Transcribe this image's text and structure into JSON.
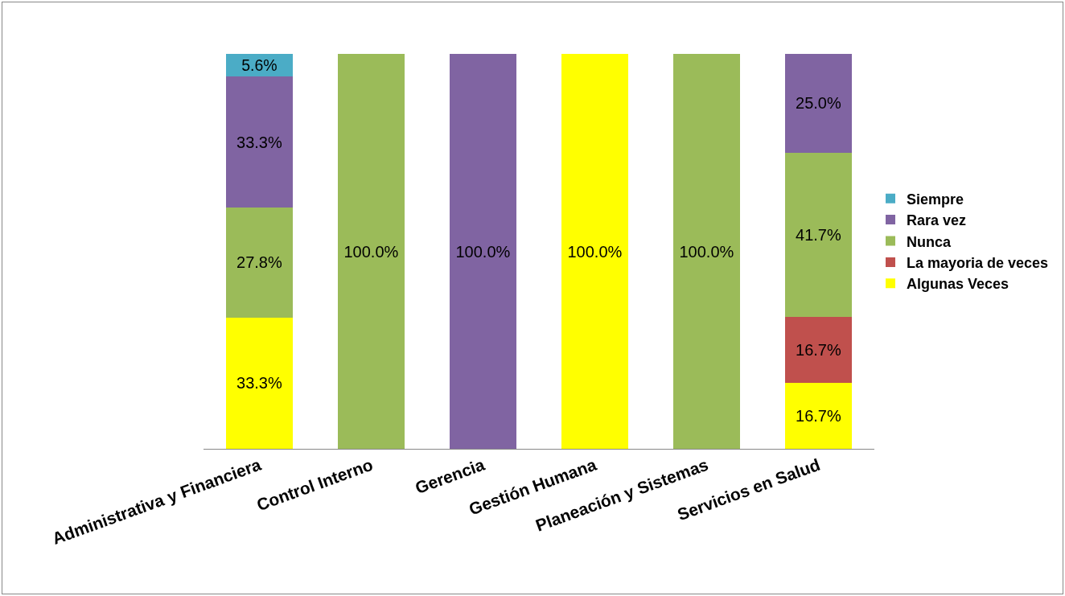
{
  "chart_data": {
    "type": "bar",
    "stacked": true,
    "legend": "right",
    "categories": [
      "Administrativa y Financiera",
      "Control Interno",
      "Gerencia",
      "Gestión Humana",
      "Planeación y Sistemas",
      "Servicios en Salud"
    ],
    "series": [
      {
        "name": "Algunas Veces",
        "color": "#ffff00",
        "values": [
          33.3,
          null,
          null,
          100.0,
          null,
          16.7
        ],
        "value_labels": [
          "33.3%",
          null,
          null,
          "100.0%",
          null,
          "16.7%"
        ]
      },
      {
        "name": "La mayoria de veces",
        "color": "#c0504d",
        "values": [
          null,
          null,
          null,
          null,
          null,
          16.7
        ],
        "value_labels": [
          null,
          null,
          null,
          null,
          null,
          "16.7%"
        ]
      },
      {
        "name": "Nunca",
        "color": "#9bbb59",
        "values": [
          27.8,
          100.0,
          null,
          null,
          100.0,
          41.7
        ],
        "value_labels": [
          "27.8%",
          "100.0%",
          null,
          null,
          "100.0%",
          "41.7%"
        ]
      },
      {
        "name": "Rara vez",
        "color": "#8064a2",
        "values": [
          33.3,
          null,
          100.0,
          null,
          null,
          25.0
        ],
        "value_labels": [
          "33.3%",
          null,
          "100.0%",
          null,
          null,
          "25.0%"
        ]
      },
      {
        "name": "Siempre",
        "color": "#4bacc6",
        "values": [
          5.6,
          null,
          null,
          null,
          null,
          null
        ],
        "value_labels": [
          "5.6%",
          null,
          null,
          null,
          null,
          null
        ]
      }
    ]
  }
}
